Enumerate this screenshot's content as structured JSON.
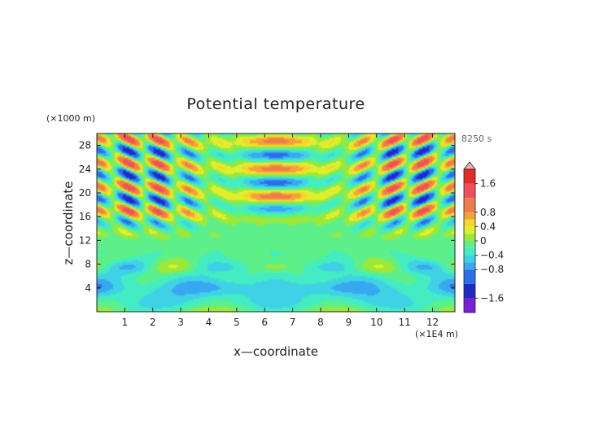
{
  "chart_data": {
    "type": "heatmap",
    "title": "Potential temperature",
    "xlabel": "x—coordinate",
    "ylabel": "z—coordinate",
    "x_unit": "(×1E4 m)",
    "y_unit": "(×1000 m)",
    "time_label": "8250 s",
    "xlim": [
      0,
      12.8
    ],
    "ylim": [
      0,
      30
    ],
    "x_ticks": [
      1,
      2,
      3,
      4,
      5,
      6,
      7,
      8,
      9,
      10,
      11,
      12
    ],
    "y_ticks": [
      4,
      8,
      12,
      16,
      20,
      24,
      28
    ],
    "colorbar": {
      "ticks": [
        1.6,
        0.8,
        0.4,
        0,
        -0.4,
        -0.8,
        -1.6
      ],
      "tick_labels": [
        "1.6",
        "0.8",
        "0.4",
        "0",
        "−0.4",
        "−0.8",
        "−1.6"
      ],
      "levels": [
        -2.0,
        -1.6,
        -1.2,
        -0.8,
        -0.6,
        -0.4,
        -0.2,
        0,
        0.2,
        0.4,
        0.6,
        0.8,
        1.2,
        1.6,
        2.0
      ],
      "colors": [
        "#7a1fd6",
        "#1f28c8",
        "#2a6ee8",
        "#38a8f0",
        "#3fd2e6",
        "#43ecc2",
        "#5df08a",
        "#9ae83a",
        "#dfef2e",
        "#f5d62b",
        "#f0a33a",
        "#f07c4a",
        "#f0505a",
        "#e52a2a"
      ],
      "max_arrow_color": "#f3a9ad",
      "min_arrow_color": "#b03ad8"
    }
  }
}
